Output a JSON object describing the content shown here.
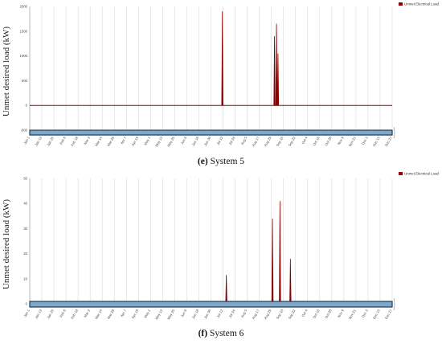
{
  "colors": {
    "series": "#8b0000",
    "grid": "#d8d8d8",
    "scrollbar": "#7fa8c8",
    "scrollbar_border": "#1f3b57"
  },
  "chart_data": [
    {
      "type": "line",
      "caption_letter": "(e)",
      "caption_text": " System 5",
      "ylabel": "Unmet desired load (kW)",
      "yticks": [
        "2000",
        "1500",
        "1000",
        "500",
        "0",
        "-500"
      ],
      "ylim": [
        -500,
        2000
      ],
      "legend": "Unmet Electrical Load",
      "xticks": [
        "Jan 1",
        "Jan 13",
        "Jan 25",
        "Feb 6",
        "Feb 18",
        "Mar 2",
        "Mar 14",
        "Mar 26",
        "Apr 7",
        "Apr 19",
        "May 1",
        "May 13",
        "May 25",
        "Jun 6",
        "Jun 18",
        "Jun 30",
        "Jul 12",
        "Jul 24",
        "Aug 5",
        "Aug 17",
        "Aug 29",
        "Sep 10",
        "Sep 22",
        "Oct 4",
        "Oct 16",
        "Oct 28",
        "Nov 9",
        "Nov 21",
        "Dec 3",
        "Dec 15",
        "Dec 27"
      ],
      "spikes": [
        {
          "day": 194.0,
          "value": 1900
        },
        {
          "day": 246.5,
          "value": 1400
        },
        {
          "day": 248.5,
          "value": 1650
        },
        {
          "day": 250.0,
          "value": 1050
        }
      ]
    },
    {
      "type": "line",
      "caption_letter": "(f)",
      "caption_text": " System 6",
      "ylabel": "Unmet desired load (kW)",
      "yticks": [
        "50",
        "40",
        "30",
        "20",
        "10",
        "0"
      ],
      "ylim": [
        0,
        50
      ],
      "legend": "Unmet Electrical Load",
      "xticks": [
        "Jan 1",
        "Jan 13",
        "Jan 25",
        "Feb 6",
        "Feb 18",
        "Mar 2",
        "Mar 14",
        "Mar 26",
        "Apr 7",
        "Apr 19",
        "May 1",
        "May 13",
        "May 25",
        "Jun 6",
        "Jun 18",
        "Jun 30",
        "Jul 12",
        "Jul 24",
        "Aug 5",
        "Aug 17",
        "Aug 29",
        "Sep 10",
        "Sep 22",
        "Oct 4",
        "Oct 16",
        "Oct 28",
        "Nov 9",
        "Nov 21",
        "Dec 3",
        "Dec 15",
        "Dec 27"
      ],
      "spikes": [
        {
          "day": 198.0,
          "value": 11.5
        },
        {
          "day": 244.5,
          "value": 34
        },
        {
          "day": 252.0,
          "value": 41
        },
        {
          "day": 262.5,
          "value": 18
        }
      ]
    }
  ]
}
